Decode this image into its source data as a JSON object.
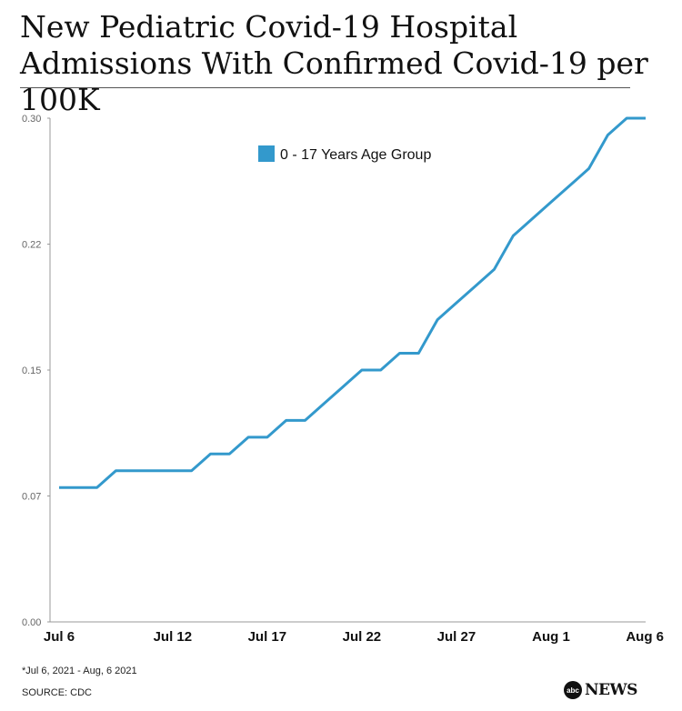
{
  "chart_data": {
    "type": "line",
    "title": "New Pediatric Covid-19 Hospital Admissions With Confirmed Covid-19 per 100K",
    "x_tick_labels": [
      "Jul 6",
      "Jul 12",
      "Jul 17",
      "Jul 22",
      "Jul 27",
      "Aug 1",
      "Aug 6"
    ],
    "y_tick_labels": [
      "0.00",
      "0.07",
      "0.15",
      "0.22",
      "0.30"
    ],
    "ylim": [
      0,
      0.3
    ],
    "x": [
      "Jul 6",
      "Jul 7",
      "Jul 8",
      "Jul 9",
      "Jul 10",
      "Jul 11",
      "Jul 12",
      "Jul 13",
      "Jul 14",
      "Jul 15",
      "Jul 16",
      "Jul 17",
      "Jul 18",
      "Jul 19",
      "Jul 20",
      "Jul 21",
      "Jul 22",
      "Jul 23",
      "Jul 24",
      "Jul 25",
      "Jul 26",
      "Jul 27",
      "Jul 28",
      "Jul 29",
      "Jul 30",
      "Jul 31",
      "Aug 1",
      "Aug 2",
      "Aug 3",
      "Aug 4",
      "Aug 5",
      "Aug 6"
    ],
    "series": [
      {
        "name": "0 - 17 Years Age Group",
        "color": "#3399cc",
        "values": [
          0.08,
          0.08,
          0.08,
          0.09,
          0.09,
          0.09,
          0.09,
          0.09,
          0.1,
          0.1,
          0.11,
          0.11,
          0.12,
          0.12,
          0.13,
          0.14,
          0.15,
          0.15,
          0.16,
          0.16,
          0.18,
          0.19,
          0.2,
          0.21,
          0.23,
          0.24,
          0.25,
          0.26,
          0.27,
          0.29,
          0.3,
          0.3
        ]
      }
    ],
    "legend_position": "top-center",
    "grid": false
  },
  "footnote": "*Jul 6, 2021 - Aug, 6 2021",
  "source": "SOURCE: CDC",
  "brand": {
    "logo_text": "abc",
    "name": "NEWS"
  }
}
